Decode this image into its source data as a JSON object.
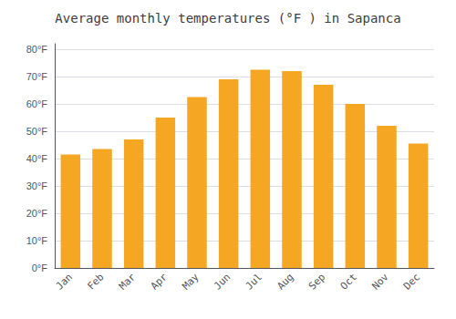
{
  "chart_data": {
    "type": "bar",
    "title": "Average monthly temperatures (°F ) in Sapanca",
    "categories": [
      "Jan",
      "Feb",
      "Mar",
      "Apr",
      "May",
      "Jun",
      "Jul",
      "Aug",
      "Sep",
      "Oct",
      "Nov",
      "Dec"
    ],
    "values": [
      41.5,
      43.5,
      47.0,
      55.0,
      62.5,
      69.0,
      72.5,
      72.0,
      67.0,
      60.0,
      52.0,
      45.5
    ],
    "color": "#F5A623",
    "ylim": [
      0,
      82
    ],
    "yticks": [
      {
        "value": 0,
        "label": "0°F"
      },
      {
        "value": 10,
        "label": "10°F"
      },
      {
        "value": 20,
        "label": "20°F"
      },
      {
        "value": 30,
        "label": "30°F"
      },
      {
        "value": 40,
        "label": "40°F"
      },
      {
        "value": 50,
        "label": "50°F"
      },
      {
        "value": 60,
        "label": "60°F"
      },
      {
        "value": 70,
        "label": "70°F"
      },
      {
        "value": 80,
        "label": "80°F"
      }
    ],
    "grid": true
  }
}
